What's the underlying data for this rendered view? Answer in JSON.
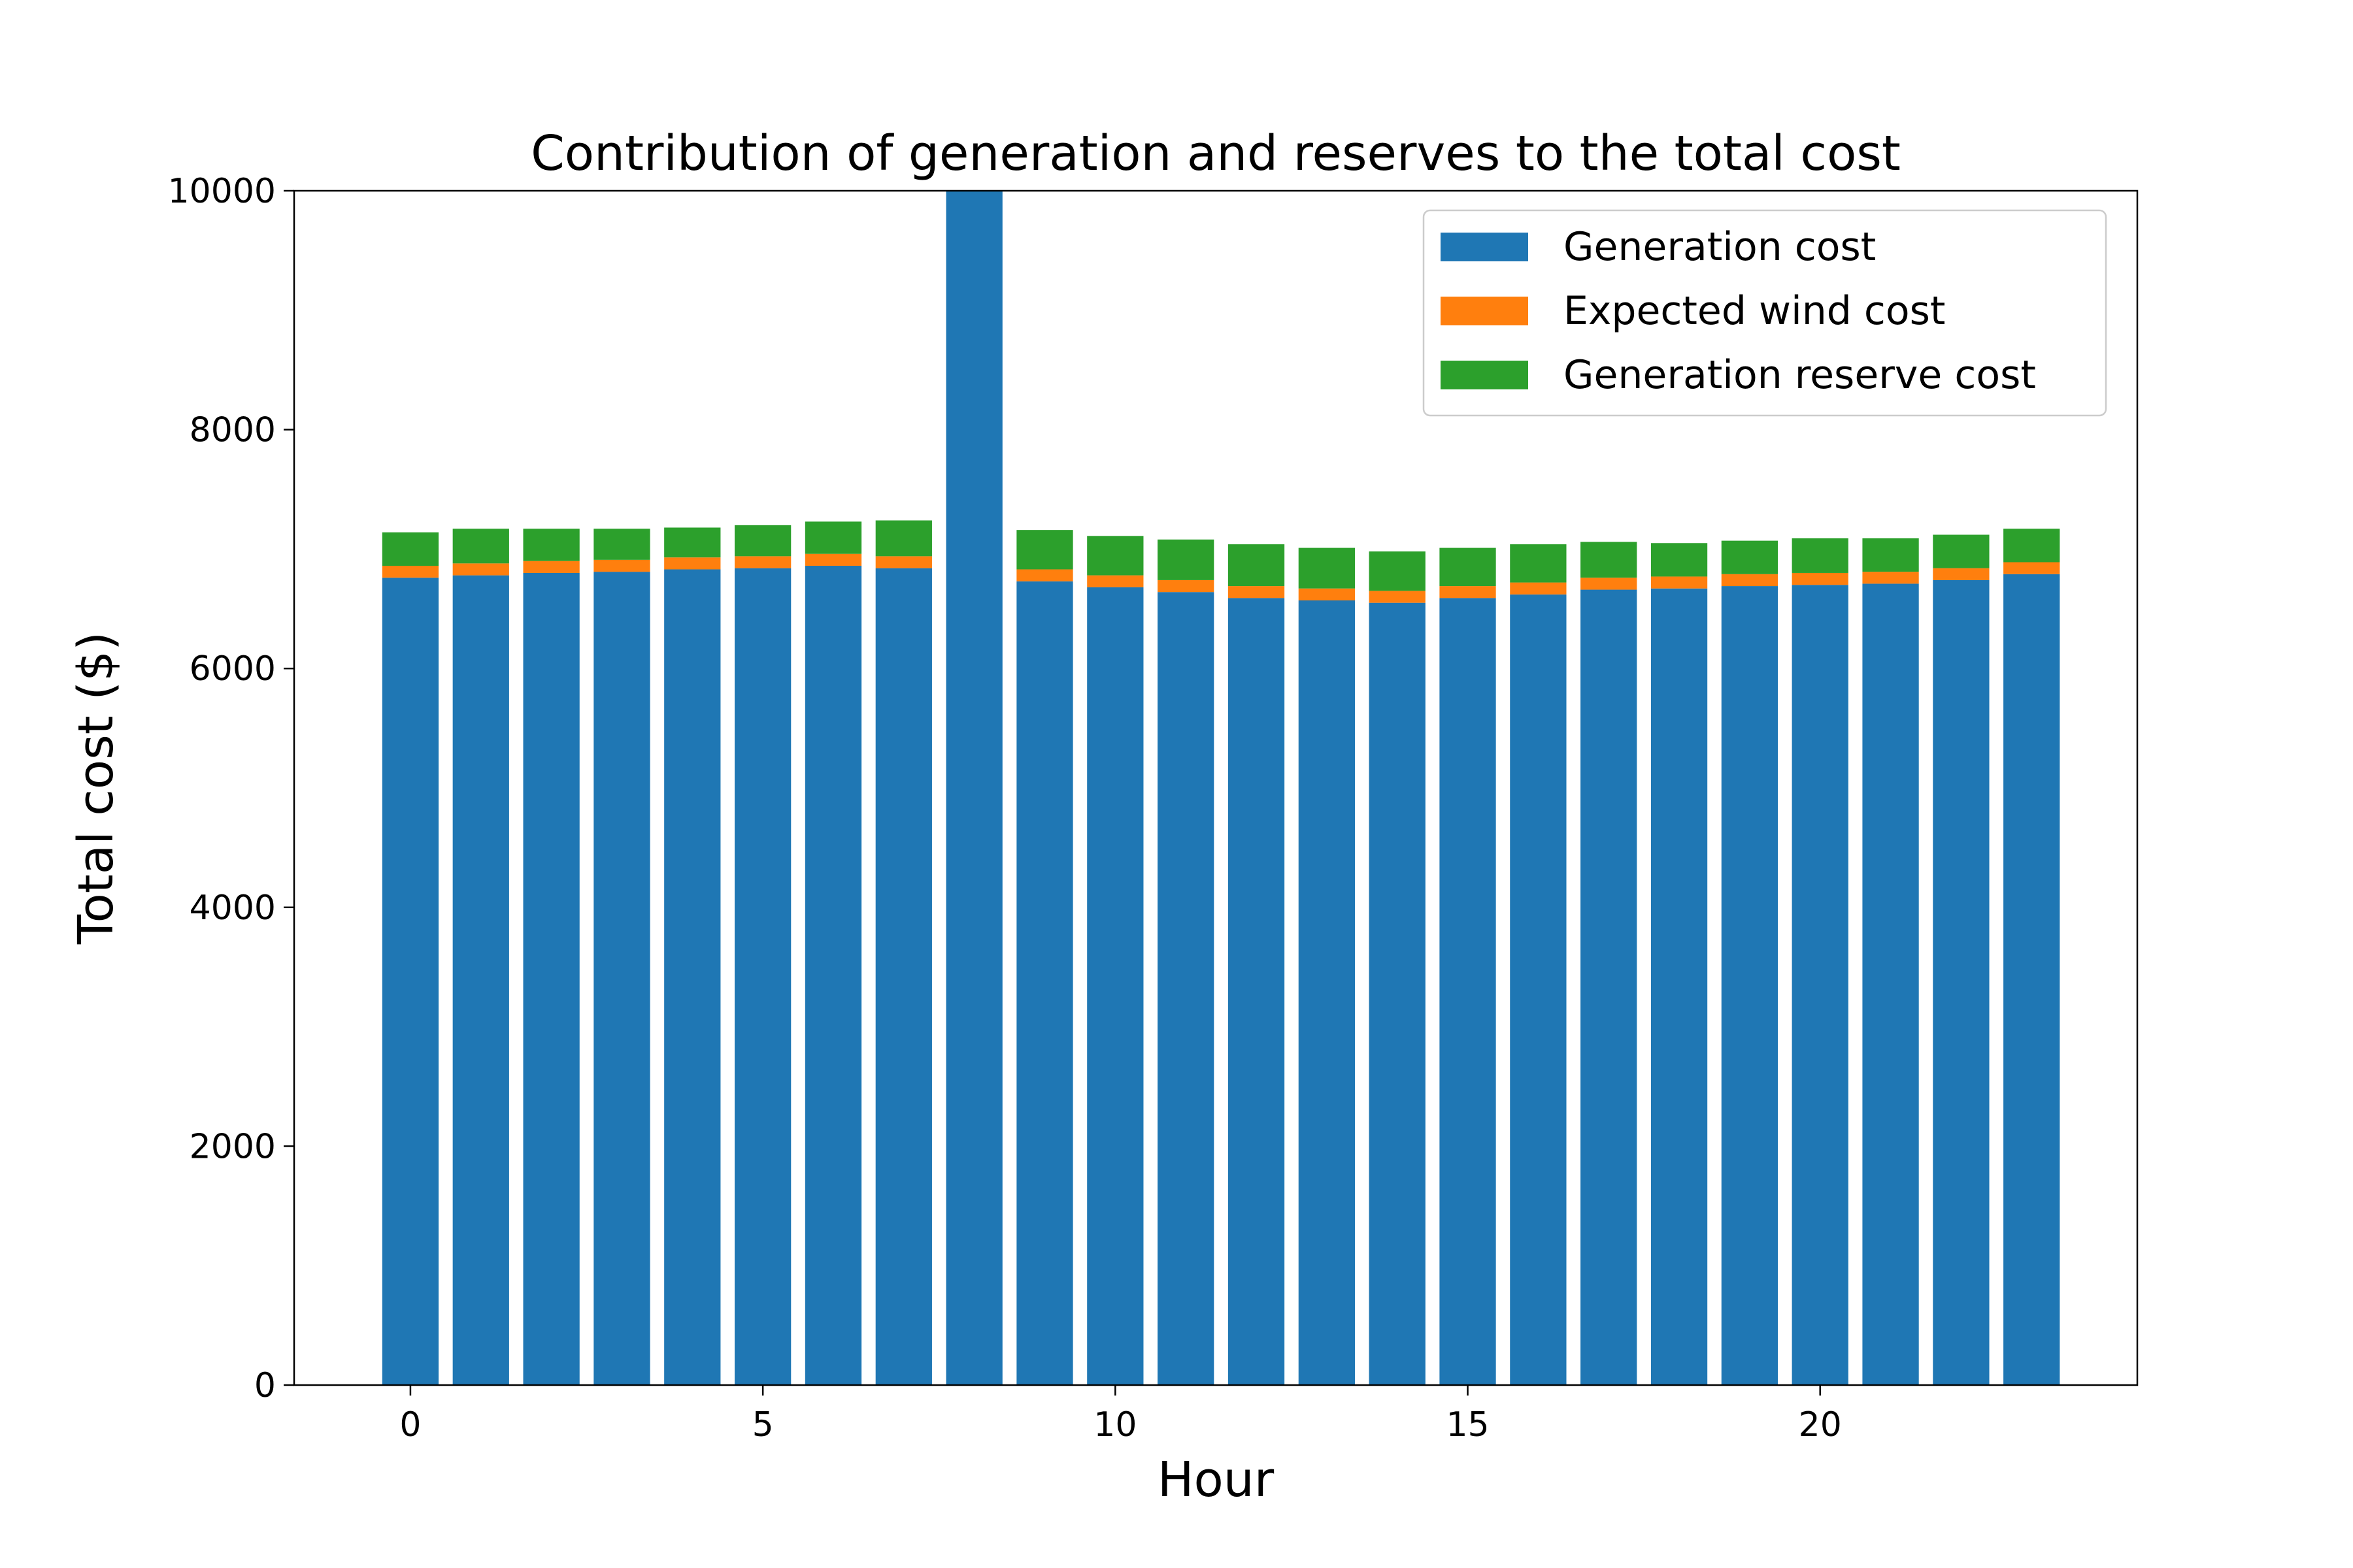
{
  "chart_data": {
    "type": "bar",
    "stacked": true,
    "title": "Contribution of generation and reserves to the total cost",
    "xlabel": "Hour",
    "ylabel": "Total cost ($)",
    "ylim": [
      0,
      10000
    ],
    "xlim": [
      -1.65,
      24.5
    ],
    "x": [
      0,
      1,
      2,
      3,
      4,
      5,
      6,
      7,
      8,
      9,
      10,
      11,
      12,
      13,
      14,
      15,
      16,
      17,
      18,
      19,
      20,
      21,
      22,
      23
    ],
    "x_ticks": [
      0,
      5,
      10,
      15,
      20
    ],
    "y_ticks": [
      0,
      2000,
      4000,
      6000,
      8000,
      10000
    ],
    "grid": false,
    "legend_position": "upper-right",
    "series": [
      {
        "name": "Generation cost",
        "color": "#1f77b4",
        "values": [
          6760,
          6780,
          6800,
          6810,
          6830,
          6840,
          6860,
          6840,
          10000,
          6730,
          6680,
          6640,
          6590,
          6570,
          6550,
          6590,
          6620,
          6660,
          6670,
          6690,
          6700,
          6710,
          6740,
          6790
        ]
      },
      {
        "name": "Expected wind cost",
        "color": "#ff7f0e",
        "values": [
          100,
          100,
          100,
          100,
          100,
          100,
          100,
          100,
          0,
          100,
          100,
          100,
          100,
          100,
          100,
          100,
          100,
          100,
          100,
          100,
          100,
          100,
          100,
          100
        ]
      },
      {
        "name": "Generation reserve cost",
        "color": "#2ca02c",
        "values": [
          280,
          290,
          270,
          260,
          250,
          260,
          270,
          300,
          0,
          330,
          330,
          340,
          350,
          340,
          330,
          320,
          320,
          300,
          280,
          280,
          290,
          280,
          280,
          280
        ]
      }
    ]
  }
}
